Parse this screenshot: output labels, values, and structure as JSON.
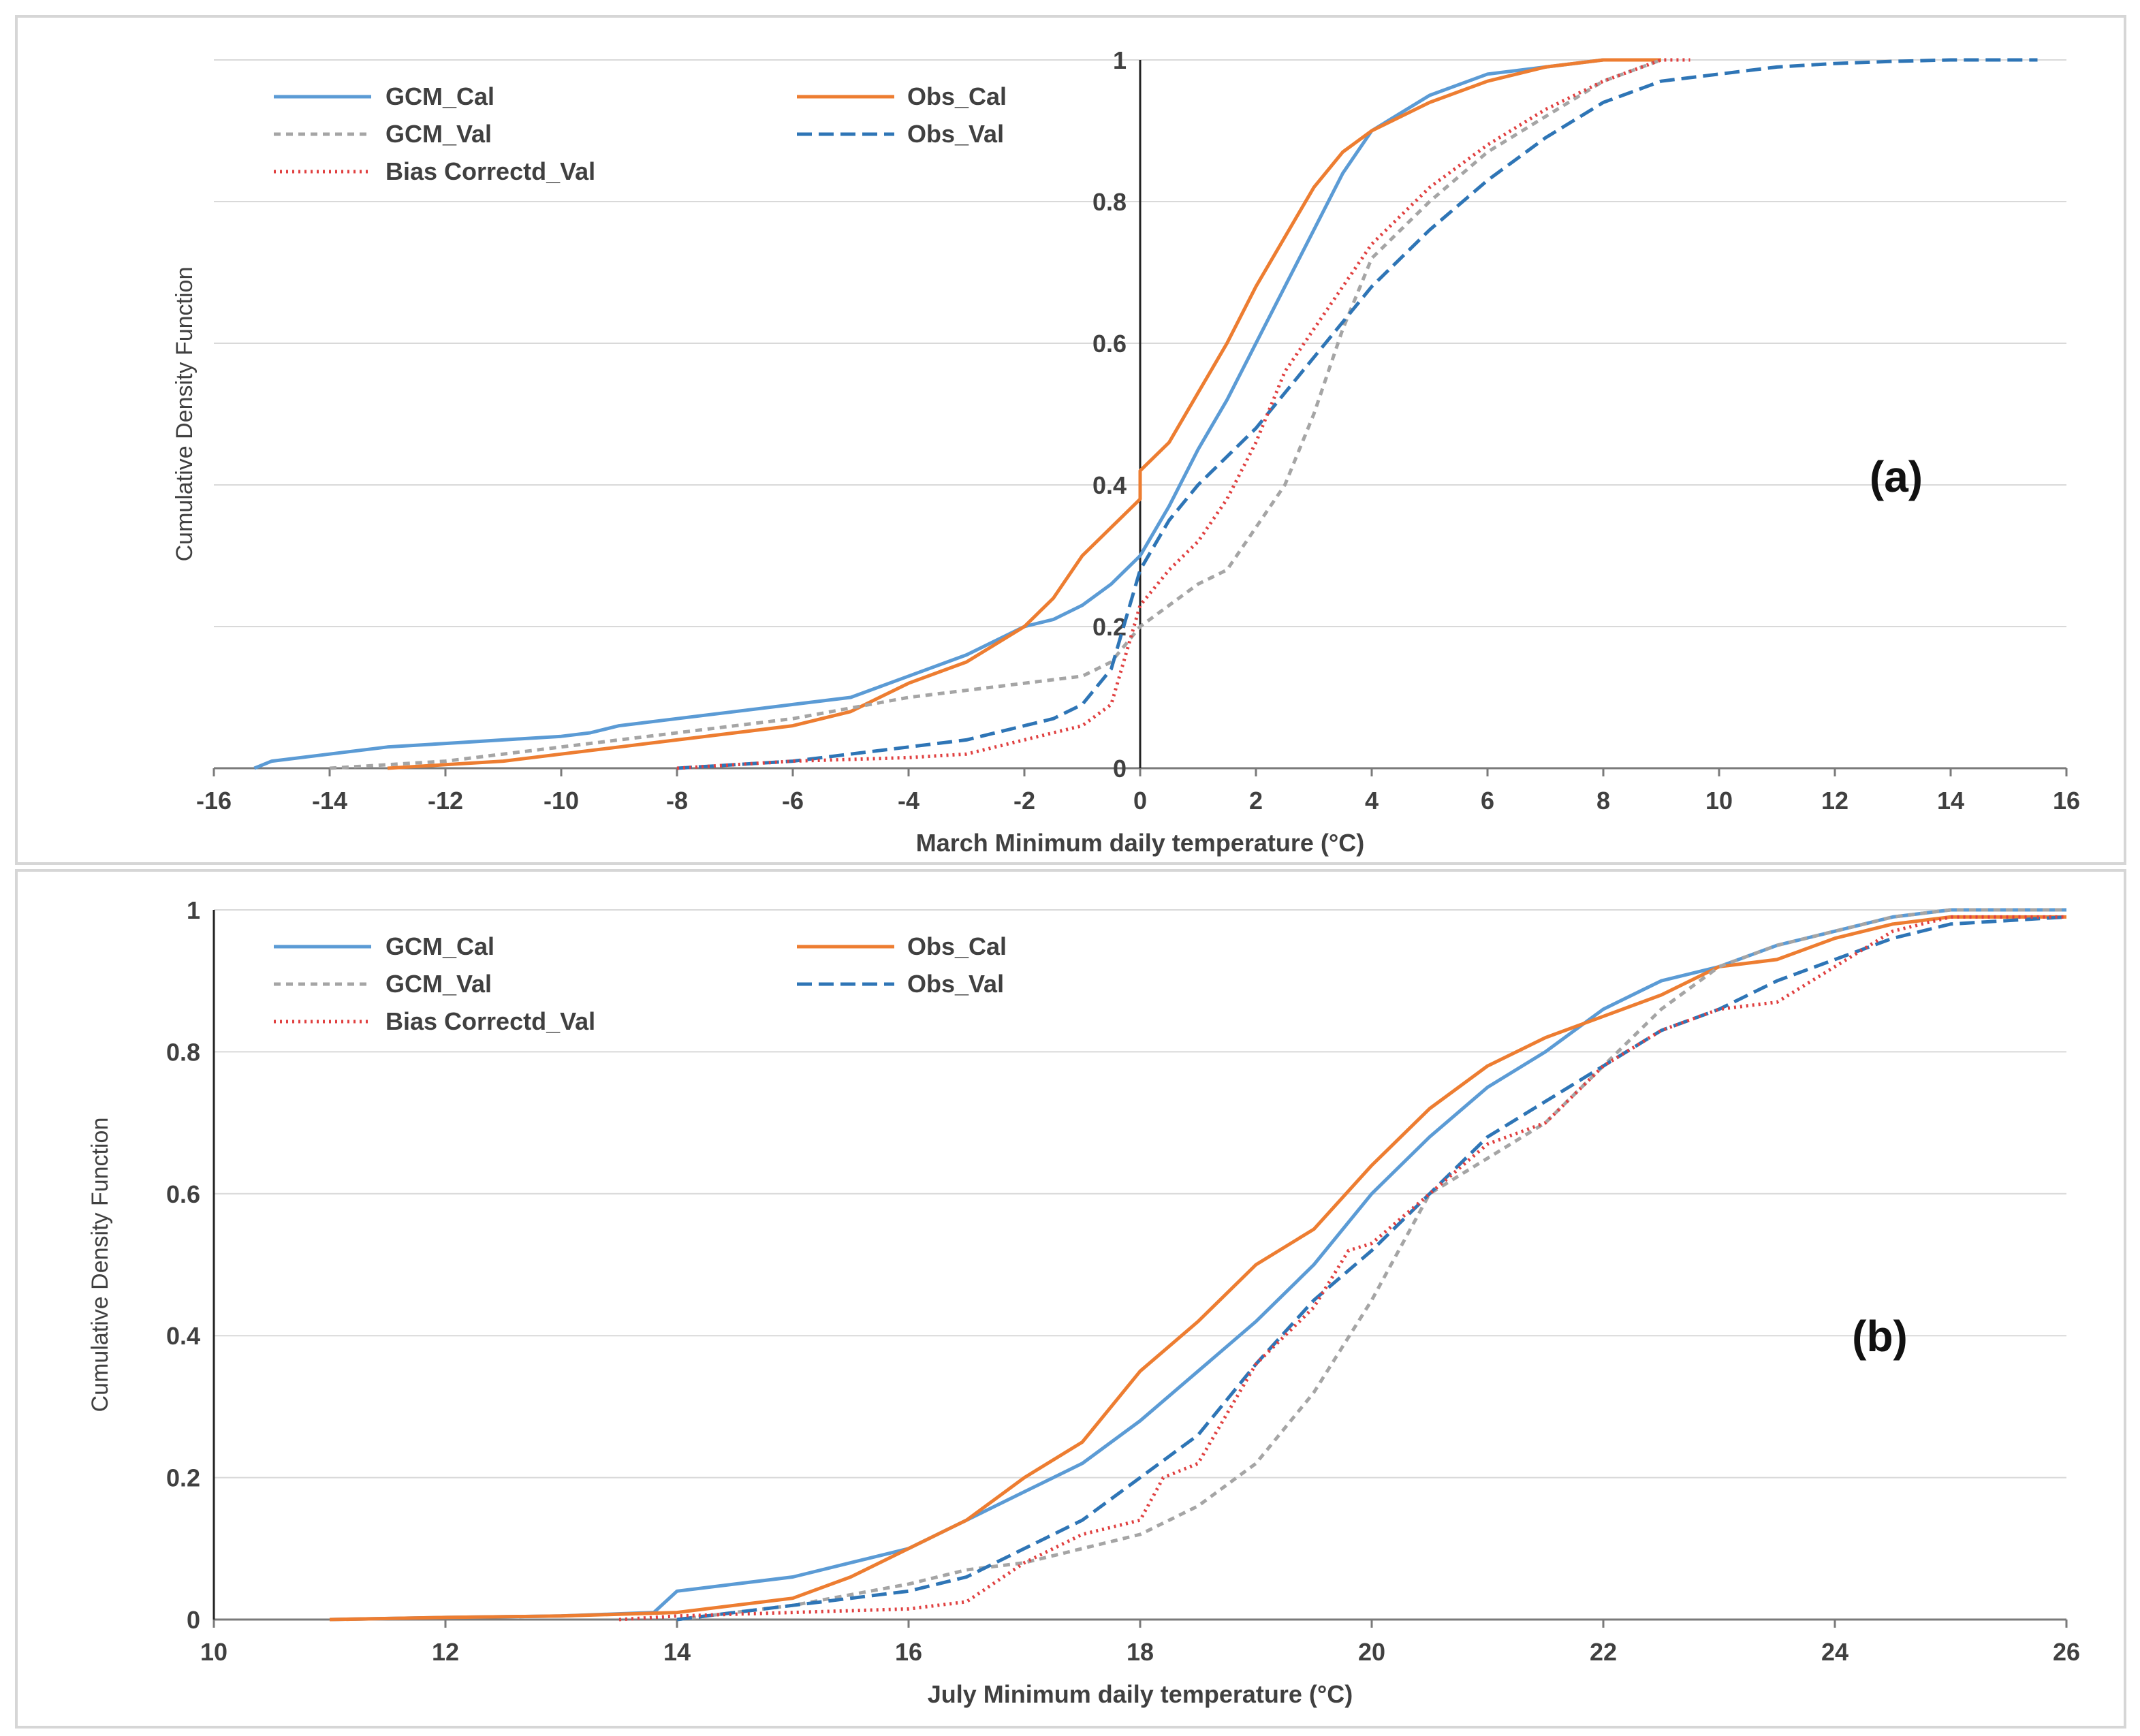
{
  "chart_data": [
    {
      "panel": "a",
      "type": "line",
      "panel_label": "(a)",
      "xlabel": "March Minimum daily temperature (°C)",
      "ylabel": "Cumulative Density Function",
      "xlim": [
        -16,
        16
      ],
      "ylim": [
        0,
        1
      ],
      "xticks": [
        "-16",
        "-14",
        "-12",
        "-10",
        "-8",
        "-6",
        "-4",
        "-2",
        "0",
        "2",
        "4",
        "6",
        "8",
        "10",
        "12",
        "14",
        "16"
      ],
      "yticks": [
        "0",
        "0.2",
        "0.4",
        "0.6",
        "0.8",
        "1"
      ],
      "vertical_axis_at_x": 0,
      "series": [
        {
          "name": "GCM_Cal",
          "color": "#5b9bd5",
          "dash": "solid",
          "x": [
            -15.3,
            -15,
            -14,
            -13,
            -12,
            -11,
            -10,
            -9.5,
            -9,
            -8,
            -7,
            -6,
            -5,
            -4,
            -3,
            -2,
            -1.5,
            -1,
            -0.5,
            0,
            0.5,
            1,
            1.5,
            2,
            2.5,
            3,
            3.5,
            4,
            5,
            6,
            7,
            8,
            9
          ],
          "y": [
            0,
            0.01,
            0.02,
            0.03,
            0.035,
            0.04,
            0.045,
            0.05,
            0.06,
            0.07,
            0.08,
            0.09,
            0.1,
            0.13,
            0.16,
            0.2,
            0.21,
            0.23,
            0.26,
            0.3,
            0.37,
            0.45,
            0.52,
            0.6,
            0.68,
            0.76,
            0.84,
            0.9,
            0.95,
            0.98,
            0.99,
            1.0,
            1.0
          ]
        },
        {
          "name": "Obs_Cal",
          "color": "#ed7d31",
          "dash": "solid",
          "x": [
            -13,
            -12,
            -11,
            -10,
            -9,
            -8,
            -7,
            -6,
            -5,
            -4,
            -3,
            -2,
            -1.5,
            -1,
            -0.5,
            0,
            0,
            0.5,
            1,
            1.5,
            2,
            2.5,
            3,
            3.5,
            4,
            5,
            6,
            7,
            8,
            9
          ],
          "y": [
            0,
            0.005,
            0.01,
            0.02,
            0.03,
            0.04,
            0.05,
            0.06,
            0.08,
            0.12,
            0.15,
            0.2,
            0.24,
            0.3,
            0.34,
            0.38,
            0.42,
            0.46,
            0.53,
            0.6,
            0.68,
            0.75,
            0.82,
            0.87,
            0.9,
            0.94,
            0.97,
            0.99,
            1.0,
            1.0
          ]
        },
        {
          "name": "GCM_Val",
          "color": "#a5a5a5",
          "dash": "10,8",
          "x": [
            -14,
            -12,
            -10,
            -8,
            -6,
            -4,
            -3,
            -2,
            -1,
            -0.5,
            0,
            0.5,
            1,
            1.5,
            2,
            2.5,
            3,
            3.5,
            4,
            5,
            6,
            7,
            8,
            9
          ],
          "y": [
            0,
            0.01,
            0.03,
            0.05,
            0.07,
            0.1,
            0.11,
            0.12,
            0.13,
            0.15,
            0.2,
            0.23,
            0.26,
            0.28,
            0.34,
            0.4,
            0.5,
            0.62,
            0.72,
            0.8,
            0.87,
            0.92,
            0.97,
            1.0
          ]
        },
        {
          "name": "Obs_Val",
          "color": "#2e75b6",
          "dash": "22,10",
          "x": [
            -8,
            -7,
            -6,
            -5,
            -4,
            -3,
            -2,
            -1.5,
            -1,
            -0.5,
            0,
            0.5,
            1,
            1.5,
            2,
            3,
            4,
            5,
            6,
            7,
            8,
            9,
            10,
            11,
            12,
            13,
            14,
            15.5
          ],
          "y": [
            0,
            0.005,
            0.01,
            0.02,
            0.03,
            0.04,
            0.06,
            0.07,
            0.09,
            0.14,
            0.28,
            0.35,
            0.4,
            0.44,
            0.48,
            0.58,
            0.68,
            0.76,
            0.83,
            0.89,
            0.94,
            0.97,
            0.98,
            0.99,
            0.995,
            0.998,
            1.0,
            1.0
          ]
        },
        {
          "name": "Bias Correctd_Val",
          "color": "#e04040",
          "dash": "3,6",
          "x": [
            -8,
            -6,
            -4,
            -3,
            -2,
            -1.5,
            -1,
            -0.5,
            0,
            0.5,
            1,
            1.5,
            2,
            2.5,
            3,
            3.5,
            4,
            5,
            6,
            7,
            8,
            9,
            9.5
          ],
          "y": [
            0,
            0.01,
            0.015,
            0.02,
            0.04,
            0.05,
            0.06,
            0.09,
            0.23,
            0.28,
            0.32,
            0.38,
            0.46,
            0.56,
            0.62,
            0.68,
            0.74,
            0.82,
            0.88,
            0.93,
            0.97,
            1.0,
            1.0
          ]
        }
      ],
      "legend": [
        "GCM_Cal",
        "Obs_Cal",
        "GCM_Val",
        "Obs_Val",
        "Bias Correctd_Val"
      ]
    },
    {
      "panel": "b",
      "type": "line",
      "panel_label": "(b)",
      "xlabel": "July Minimum daily temperature (°C)",
      "ylabel": "Cumulative Density Function",
      "xlim": [
        10,
        26
      ],
      "ylim": [
        0,
        1
      ],
      "xticks": [
        "10",
        "12",
        "14",
        "16",
        "18",
        "20",
        "22",
        "24",
        "26"
      ],
      "yticks": [
        "0",
        "0.2",
        "0.4",
        "0.6",
        "0.8",
        "1"
      ],
      "series": [
        {
          "name": "GCM_Cal",
          "color": "#5b9bd5",
          "dash": "solid",
          "x": [
            11,
            12,
            13,
            13.8,
            14,
            14.5,
            15,
            15.5,
            16,
            16.5,
            17,
            17.5,
            18,
            18.5,
            19,
            19.5,
            20,
            20.5,
            21,
            21.5,
            22,
            22.5,
            23,
            23.5,
            24,
            24.5,
            25,
            26
          ],
          "y": [
            0,
            0.003,
            0.005,
            0.01,
            0.04,
            0.05,
            0.06,
            0.08,
            0.1,
            0.14,
            0.18,
            0.22,
            0.28,
            0.35,
            0.42,
            0.5,
            0.6,
            0.68,
            0.75,
            0.8,
            0.86,
            0.9,
            0.92,
            0.95,
            0.97,
            0.99,
            1.0,
            1.0
          ]
        },
        {
          "name": "Obs_Cal",
          "color": "#ed7d31",
          "dash": "solid",
          "x": [
            11,
            12,
            13,
            14,
            15,
            15.5,
            16,
            16.5,
            17,
            17.5,
            18,
            18.5,
            19,
            19.5,
            20,
            20.5,
            21,
            21.5,
            22,
            22.5,
            23,
            23.5,
            24,
            24.5,
            25,
            26
          ],
          "y": [
            0,
            0.003,
            0.005,
            0.01,
            0.03,
            0.06,
            0.1,
            0.14,
            0.2,
            0.25,
            0.35,
            0.42,
            0.5,
            0.55,
            0.64,
            0.72,
            0.78,
            0.82,
            0.85,
            0.88,
            0.92,
            0.93,
            0.96,
            0.98,
            0.99,
            0.99
          ]
        },
        {
          "name": "GCM_Val",
          "color": "#a5a5a5",
          "dash": "10,8",
          "x": [
            14,
            15,
            16,
            16.5,
            17,
            17.5,
            18,
            18.5,
            19,
            19.5,
            20,
            20.5,
            21,
            21.5,
            22,
            22.5,
            23,
            23.5,
            24,
            24.5,
            25,
            26
          ],
          "y": [
            0,
            0.02,
            0.05,
            0.07,
            0.08,
            0.1,
            0.12,
            0.16,
            0.22,
            0.32,
            0.45,
            0.6,
            0.65,
            0.7,
            0.78,
            0.86,
            0.92,
            0.95,
            0.97,
            0.99,
            1.0,
            1.0
          ]
        },
        {
          "name": "Obs_Val",
          "color": "#2e75b6",
          "dash": "22,10",
          "x": [
            14,
            15,
            16,
            16.5,
            17,
            17.5,
            18,
            18.5,
            19,
            19.5,
            20,
            20.5,
            21,
            21.5,
            22,
            22.5,
            23,
            23.5,
            24,
            24.5,
            25,
            26
          ],
          "y": [
            0,
            0.02,
            0.04,
            0.06,
            0.1,
            0.14,
            0.2,
            0.26,
            0.36,
            0.45,
            0.52,
            0.6,
            0.68,
            0.73,
            0.78,
            0.83,
            0.86,
            0.9,
            0.93,
            0.96,
            0.98,
            0.99
          ]
        },
        {
          "name": "Bias Correctd_Val",
          "color": "#e04040",
          "dash": "3,6",
          "x": [
            13.5,
            14,
            15,
            16,
            16.5,
            17,
            17.5,
            18,
            18.2,
            18.5,
            19,
            19.5,
            19.8,
            20,
            20.5,
            21,
            21.5,
            22,
            22.5,
            23,
            23.5,
            24,
            24.5,
            25,
            26
          ],
          "y": [
            0,
            0.005,
            0.01,
            0.015,
            0.025,
            0.08,
            0.12,
            0.14,
            0.2,
            0.22,
            0.36,
            0.44,
            0.52,
            0.53,
            0.6,
            0.67,
            0.7,
            0.78,
            0.83,
            0.86,
            0.87,
            0.92,
            0.97,
            0.99,
            0.99
          ]
        }
      ],
      "legend": [
        "GCM_Cal",
        "Obs_Cal",
        "GCM_Val",
        "Obs_Val",
        "Bias Correctd_Val"
      ]
    }
  ]
}
